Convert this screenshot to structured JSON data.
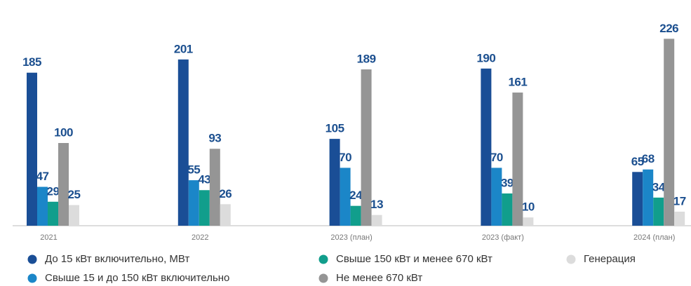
{
  "chart_data": {
    "type": "bar",
    "categories": [
      "2021",
      "2022",
      "2023 (план)",
      "2023 (факт)",
      "2024 (план)"
    ],
    "series": [
      {
        "name": "До 15 кВт включительно, МВт",
        "color": "#1a4e96",
        "values": [
          185,
          201,
          105,
          190,
          65
        ]
      },
      {
        "name": "Свыше 15 и до 150 кВт включительно",
        "color": "#1b86c8",
        "values": [
          47,
          55,
          70,
          70,
          68
        ]
      },
      {
        "name": "Свыше 150 кВт и менее 670 кВт",
        "color": "#119e8c",
        "values": [
          29,
          43,
          24,
          39,
          34
        ]
      },
      {
        "name": "Не менее 670 кВт",
        "color": "#959595",
        "values": [
          100,
          93,
          189,
          161,
          226
        ]
      },
      {
        "name": "Генерация",
        "color": "#dcdcdc",
        "values": [
          25,
          26,
          13,
          10,
          17
        ]
      }
    ]
  }
}
